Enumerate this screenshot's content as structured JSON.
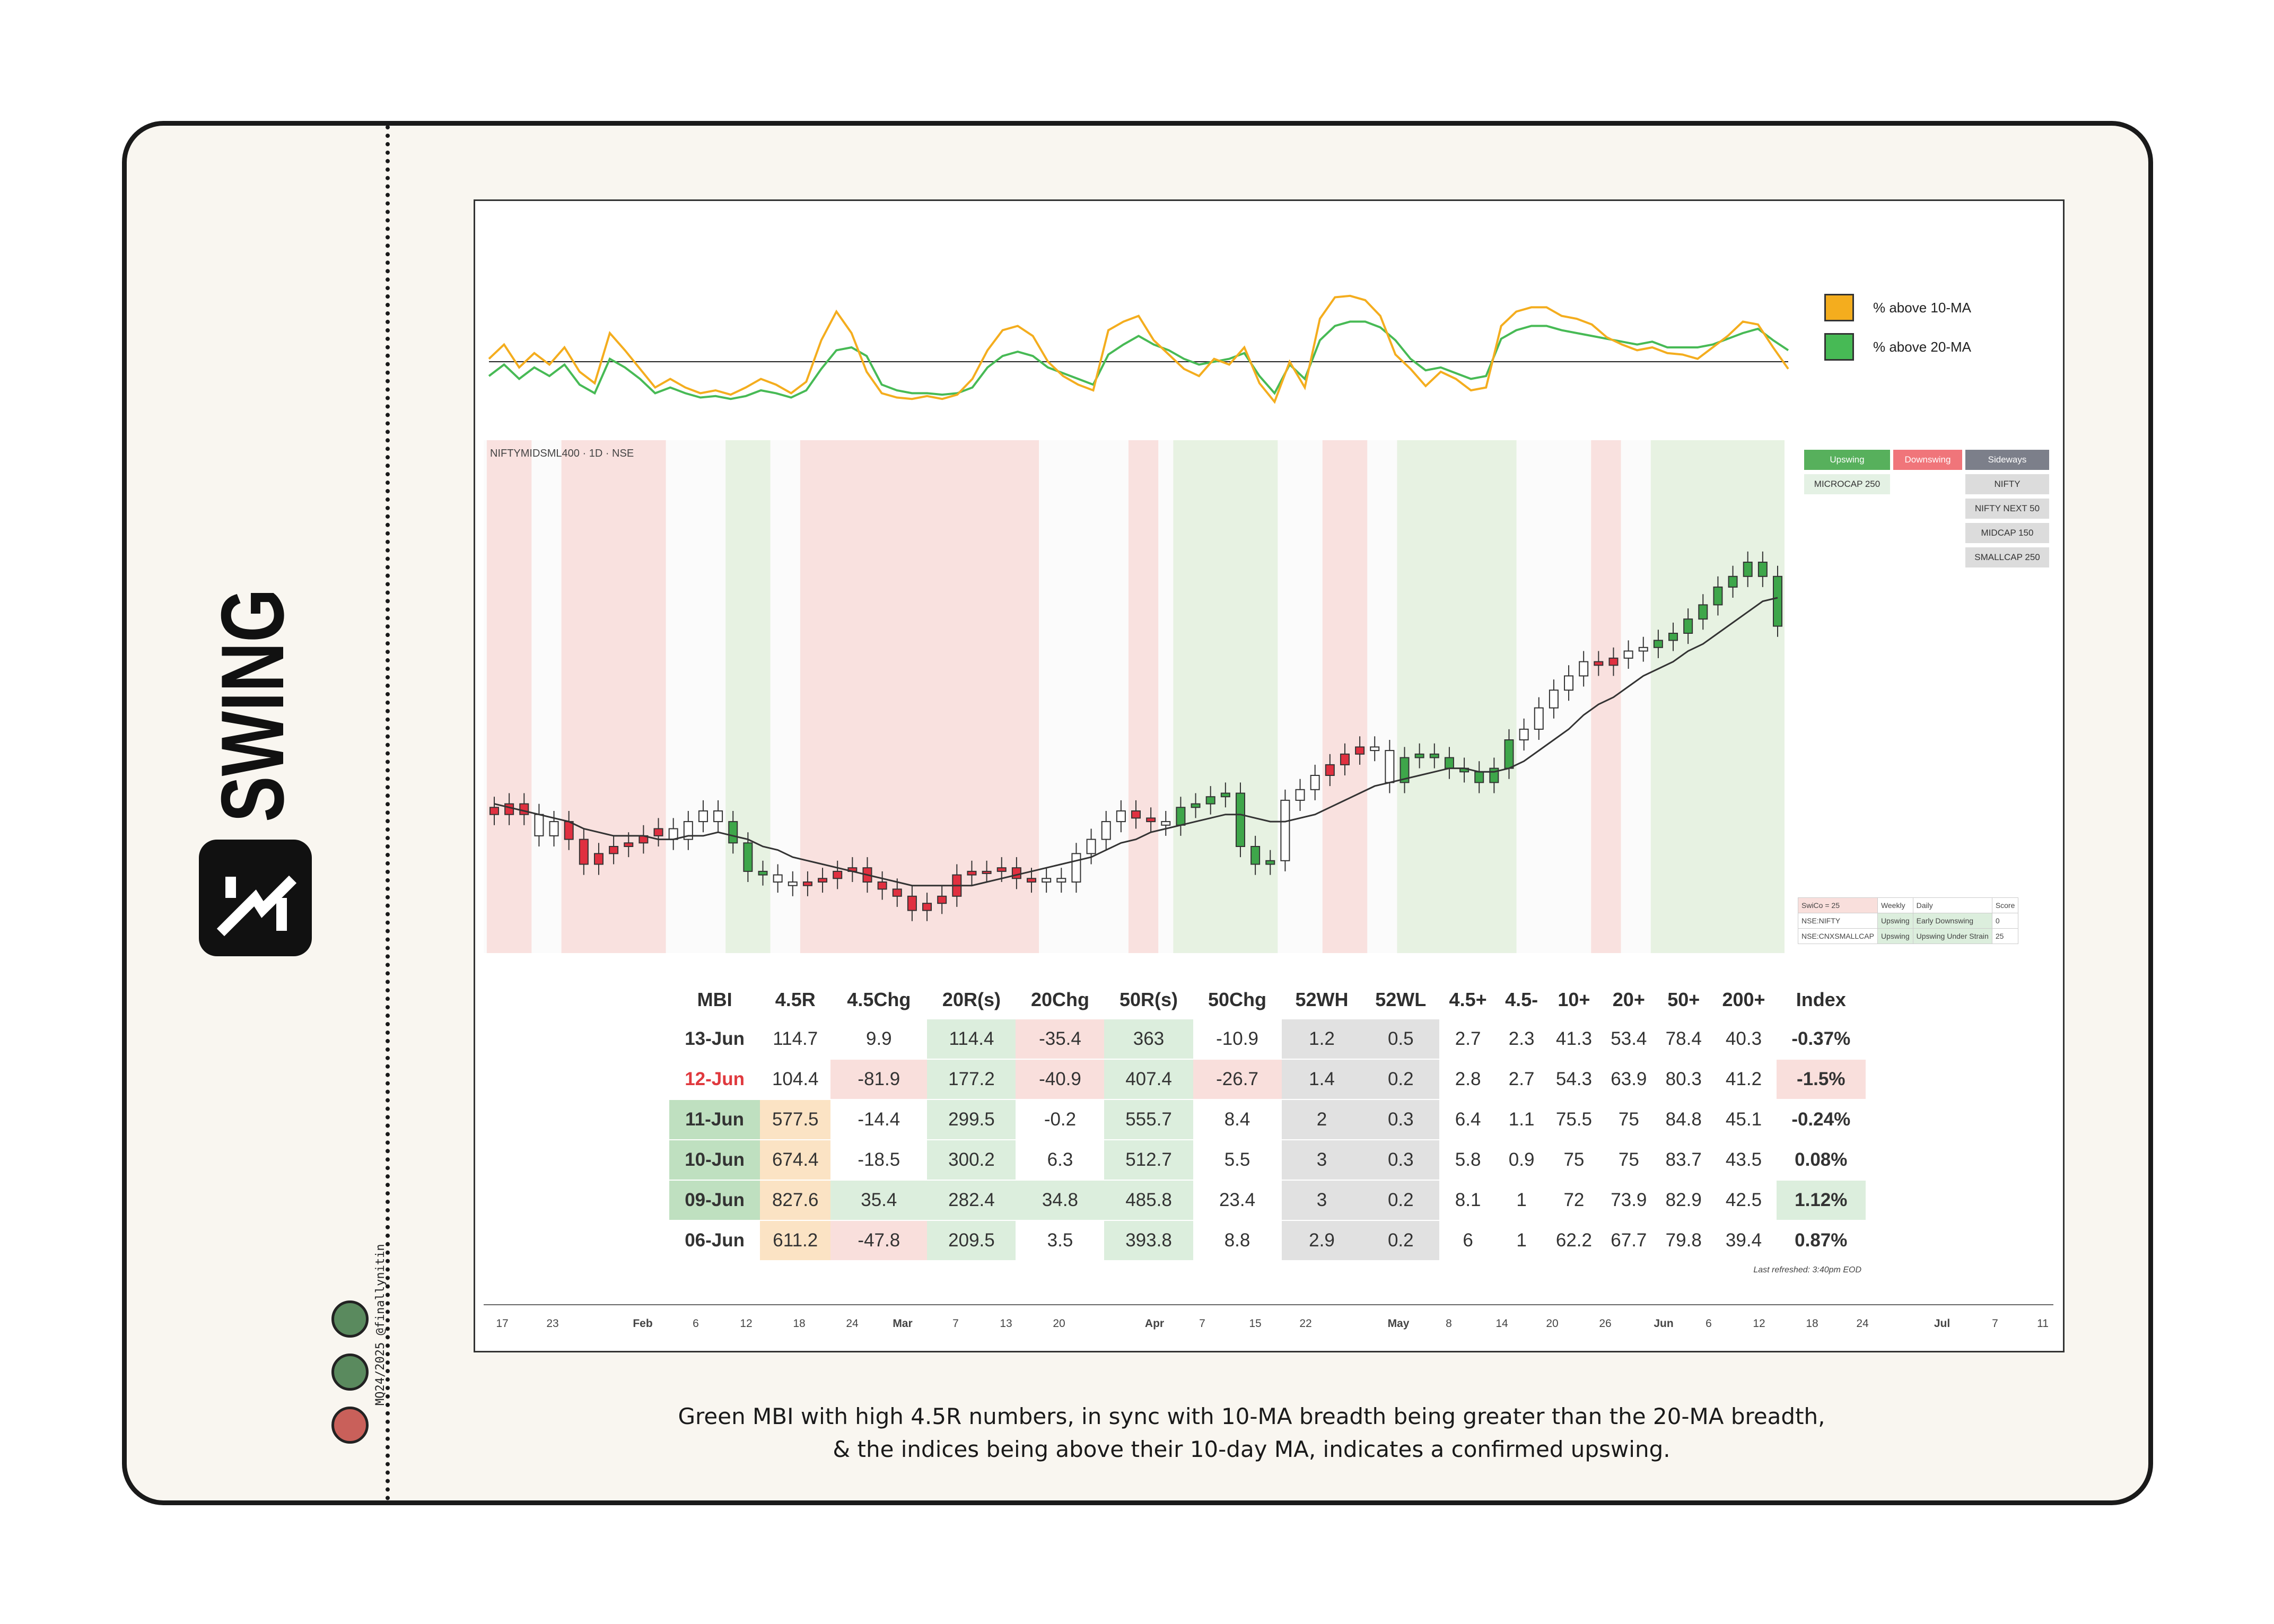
{
  "brand": {
    "name": "SWING",
    "credit": "MQ24/2025 @finallynitin"
  },
  "status_dots": [
    "#5a8a5e",
    "#5a8a5e",
    "#c9605a"
  ],
  "legend": [
    {
      "label": "% above 10-MA",
      "color": "#f4ad1e"
    },
    {
      "label": "% above 20-MA",
      "color": "#47ba55"
    }
  ],
  "ticker_label": "NIFTYMIDSML400 · 1D · NSE",
  "trend_grid": {
    "headers": [
      {
        "label": "Upswing",
        "color": "#57b05c"
      },
      {
        "label": "Downswing",
        "color": "#f0757a"
      },
      {
        "label": "Sideways",
        "color": "#7c7f8a"
      }
    ],
    "upswing": [
      "MICROCAP 250"
    ],
    "sideways": [
      "NIFTY",
      "NIFTY NEXT 50",
      "MIDCAP 150",
      "SMALLCAP 250"
    ]
  },
  "score_table": [
    [
      "SwiCo = 25",
      "Weekly",
      "Daily",
      "Score"
    ],
    [
      "NSE:NIFTY",
      "Upswing",
      "Early Downswing",
      "0"
    ],
    [
      "NSE:CNXSMALLCAP",
      "Upswing",
      "Upswing Under Strain",
      "25"
    ]
  ],
  "mbi_table": {
    "headers": [
      "MBI",
      "4.5R",
      "4.5Chg",
      "20R(s)",
      "20Chg",
      "50R(s)",
      "50Chg",
      "52WH",
      "52WL",
      "4.5+",
      "4.5-",
      "10+",
      "20+",
      "50+",
      "200+",
      "Index"
    ],
    "rows": [
      [
        "13-Jun",
        "114.7",
        "9.9",
        "114.4",
        "-35.4",
        "363",
        "-10.9",
        "1.2",
        "0.5",
        "2.7",
        "2.3",
        "41.3",
        "53.4",
        "78.4",
        "40.3",
        "-0.37%"
      ],
      [
        "12-Jun",
        "104.4",
        "-81.9",
        "177.2",
        "-40.9",
        "407.4",
        "-26.7",
        "1.4",
        "0.2",
        "2.8",
        "2.7",
        "54.3",
        "63.9",
        "80.3",
        "41.2",
        "-1.5%"
      ],
      [
        "11-Jun",
        "577.5",
        "-14.4",
        "299.5",
        "-0.2",
        "555.7",
        "8.4",
        "2",
        "0.3",
        "6.4",
        "1.1",
        "75.5",
        "75",
        "84.8",
        "45.1",
        "-0.24%"
      ],
      [
        "10-Jun",
        "674.4",
        "-18.5",
        "300.2",
        "6.3",
        "512.7",
        "5.5",
        "3",
        "0.3",
        "5.8",
        "0.9",
        "75",
        "75",
        "83.7",
        "43.5",
        "0.08%"
      ],
      [
        "09-Jun",
        "827.6",
        "35.4",
        "282.4",
        "34.8",
        "485.8",
        "23.4",
        "3",
        "0.2",
        "8.1",
        "1",
        "72",
        "73.9",
        "82.9",
        "42.5",
        "1.12%"
      ],
      [
        "06-Jun",
        "611.2",
        "-47.8",
        "209.5",
        "3.5",
        "393.8",
        "8.8",
        "2.9",
        "0.2",
        "6",
        "1",
        "62.2",
        "67.7",
        "79.8",
        "39.4",
        "0.87%"
      ]
    ],
    "cell_colors": [
      [
        "",
        "",
        "",
        "#dceedd",
        "#f9dfdc",
        "#dceedd",
        "",
        "#e1e1e1",
        "#e1e1e1",
        "",
        "",
        "",
        "",
        "",
        "",
        ""
      ],
      [
        "",
        "",
        "#f9dfdc",
        "#dceedd",
        "#f9dfdc",
        "#dceedd",
        "#f9dfdc",
        "#e1e1e1",
        "#e1e1e1",
        "",
        "",
        "",
        "",
        "",
        "",
        "#f9dfdc"
      ],
      [
        "#bfe0c0",
        "#fbe3c4",
        "",
        "#dceedd",
        "",
        "#dceedd",
        "",
        "#e1e1e1",
        "#e1e1e1",
        "",
        "",
        "",
        "",
        "",
        "",
        ""
      ],
      [
        "#bfe0c0",
        "#fbe3c4",
        "",
        "#dceedd",
        "",
        "#dceedd",
        "",
        "#e1e1e1",
        "#e1e1e1",
        "",
        "",
        "",
        "",
        "",
        "",
        ""
      ],
      [
        "#bfe0c0",
        "#fbe3c4",
        "#dceedd",
        "#dceedd",
        "#dceedd",
        "#dceedd",
        "",
        "#e1e1e1",
        "#e1e1e1",
        "",
        "",
        "",
        "",
        "",
        "",
        "#dceedd"
      ],
      [
        "",
        "#fbe3c4",
        "#f9dfdc",
        "#dceedd",
        "",
        "#dceedd",
        "",
        "#e1e1e1",
        "#e1e1e1",
        "",
        "",
        "",
        "",
        "",
        "",
        ""
      ]
    ],
    "mbi_text_colors": [
      "#333333",
      "#e0393e",
      "#333333",
      "#333333",
      "#333333",
      "#333333"
    ],
    "refreshed": "Last refreshed: 3:40pm EOD"
  },
  "x_axis_labels": [
    "17",
    "23",
    "Feb",
    "6",
    "12",
    "18",
    "24",
    "Mar",
    "7",
    "13",
    "20",
    "Apr",
    "7",
    "15",
    "22",
    "May",
    "8",
    "14",
    "20",
    "26",
    "Jun",
    "6",
    "12",
    "18",
    "24",
    "Jul",
    "7",
    "11"
  ],
  "caption": [
    "Green MBI with high 4.5R numbers, in sync with 10-MA breadth being greater than the 20-MA breadth,",
    "& the indices being above their 10-day MA, indicates a confirmed upswing."
  ],
  "chart_data": [
    {
      "type": "line",
      "series": [
        {
          "name": "% above 10-MA",
          "color": "#f4ad1e",
          "values": [
            42,
            52,
            36,
            46,
            38,
            50,
            33,
            25,
            60,
            48,
            35,
            22,
            28,
            22,
            18,
            20,
            17,
            22,
            28,
            24,
            18,
            26,
            55,
            75,
            60,
            33,
            18,
            15,
            14,
            16,
            14,
            17,
            28,
            48,
            62,
            65,
            58,
            40,
            30,
            24,
            20,
            62,
            68,
            72,
            55,
            45,
            35,
            30,
            42,
            38,
            50,
            25,
            12,
            40,
            22,
            70,
            85,
            86,
            83,
            72,
            45,
            35,
            23,
            33,
            28,
            20,
            22,
            65,
            75,
            78,
            78,
            72,
            70,
            66,
            57,
            52,
            48,
            50,
            46,
            45,
            42,
            50,
            58,
            68,
            66,
            50,
            35
          ]
        },
        {
          "name": "% above 20-MA",
          "color": "#47ba55",
          "values": [
            30,
            38,
            28,
            36,
            30,
            38,
            24,
            18,
            42,
            36,
            28,
            18,
            22,
            18,
            15,
            16,
            14,
            16,
            20,
            18,
            15,
            20,
            35,
            48,
            50,
            44,
            24,
            20,
            18,
            18,
            17,
            18,
            22,
            36,
            44,
            47,
            44,
            36,
            32,
            28,
            24,
            45,
            52,
            58,
            52,
            48,
            42,
            38,
            40,
            42,
            46,
            30,
            18,
            38,
            28,
            55,
            65,
            68,
            68,
            64,
            55,
            42,
            34,
            36,
            32,
            28,
            30,
            56,
            62,
            65,
            65,
            62,
            60,
            58,
            56,
            54,
            52,
            54,
            50,
            50,
            50,
            52,
            56,
            60,
            63,
            55,
            48
          ]
        }
      ],
      "reference_level": 40,
      "ylim": [
        0,
        100
      ]
    },
    {
      "type": "candlestick",
      "series": [
        {
          "name": "close",
          "values": [
            29,
            32,
            29,
            23,
            27,
            22,
            15,
            18,
            20,
            21,
            23,
            25,
            22,
            27,
            30,
            27,
            21,
            13,
            12,
            10,
            9,
            10,
            11,
            13,
            14,
            10,
            8,
            6,
            2,
            4,
            6,
            12,
            13,
            13,
            14,
            11,
            10,
            11,
            10,
            18,
            22,
            27,
            30,
            28,
            27,
            26,
            31,
            32,
            34,
            35,
            20,
            15,
            16,
            33,
            36,
            40,
            43,
            46,
            48,
            47,
            38,
            45,
            46,
            45,
            42,
            41,
            38,
            42,
            50,
            53,
            59,
            64,
            68,
            72,
            71,
            73,
            75,
            76,
            78,
            80,
            84,
            88,
            93,
            96,
            100,
            96,
            82
          ]
        },
        {
          "name": "ma10",
          "values": [
            32,
            31,
            30,
            29,
            28,
            27,
            25,
            24,
            23,
            23,
            23,
            22,
            22,
            23,
            23,
            24,
            23,
            22,
            20,
            19,
            17,
            16,
            15,
            14,
            13,
            12,
            11,
            10,
            9,
            9,
            9,
            9,
            9,
            10,
            11,
            12,
            13,
            14,
            15,
            16,
            17,
            19,
            21,
            22,
            24,
            25,
            26,
            27,
            28,
            29,
            29,
            28,
            27,
            27,
            28,
            29,
            31,
            33,
            35,
            37,
            38,
            39,
            40,
            41,
            42,
            42,
            41,
            41,
            42,
            44,
            47,
            50,
            53,
            57,
            60,
            62,
            65,
            68,
            70,
            72,
            75,
            77,
            80,
            83,
            86,
            89,
            90
          ]
        }
      ],
      "regimes": [
        {
          "label": "downswing",
          "span": [
            0,
            2
          ]
        },
        {
          "label": "downswing",
          "span": [
            5,
            11
          ]
        },
        {
          "label": "upswing",
          "span": [
            16,
            18
          ]
        },
        {
          "label": "downswing",
          "span": [
            21,
            36
          ]
        },
        {
          "label": "downswing",
          "span": [
            43,
            44
          ]
        },
        {
          "label": "upswing",
          "span": [
            46,
            52
          ]
        },
        {
          "label": "downswing",
          "span": [
            56,
            58
          ]
        },
        {
          "label": "upswing",
          "span": [
            61,
            68
          ]
        },
        {
          "label": "downswing",
          "span": [
            74,
            75
          ]
        },
        {
          "label": "upswing",
          "span": [
            78,
            86
          ]
        }
      ]
    }
  ]
}
